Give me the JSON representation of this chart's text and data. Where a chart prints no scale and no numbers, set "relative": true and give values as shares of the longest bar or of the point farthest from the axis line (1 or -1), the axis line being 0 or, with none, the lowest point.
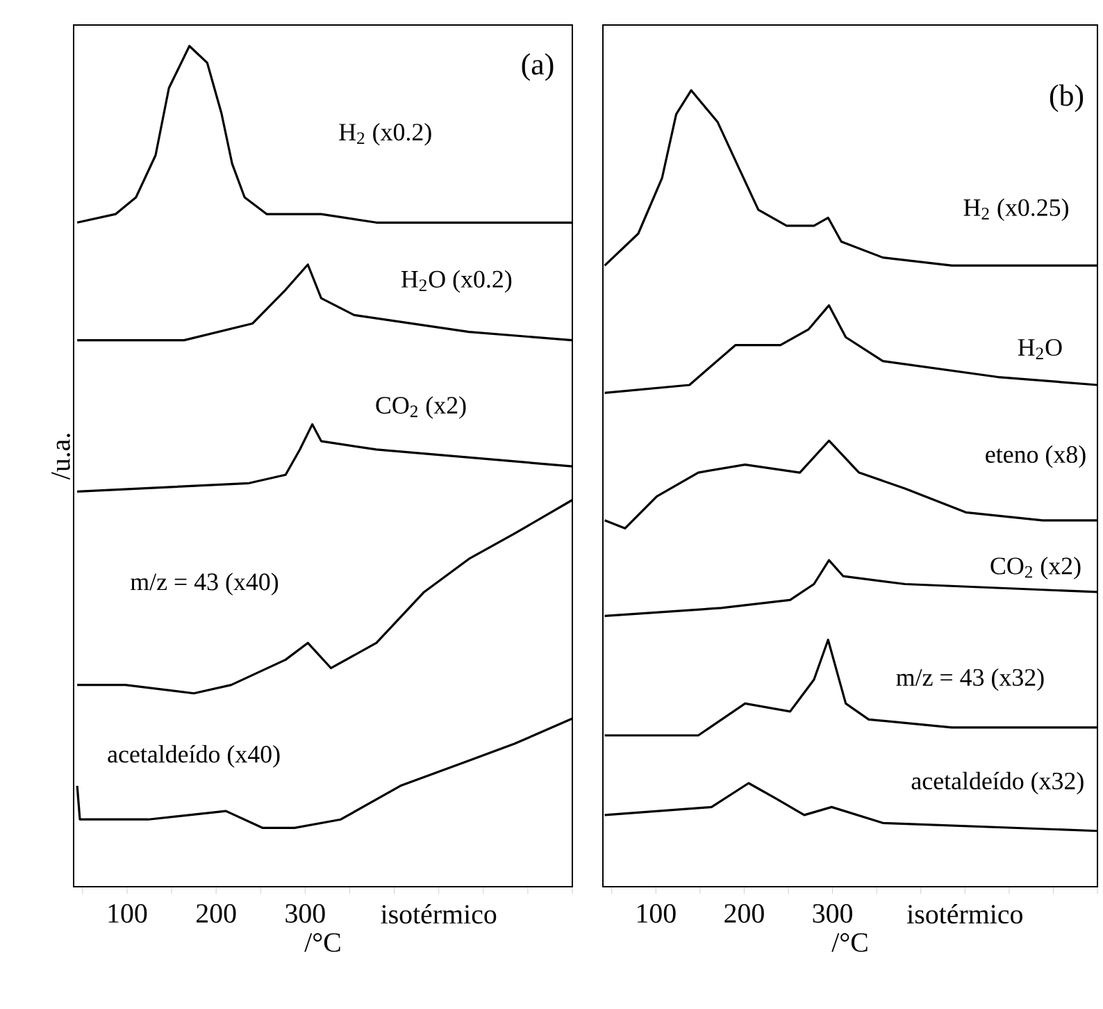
{
  "chart_data": [
    {
      "type": "line",
      "relative": true,
      "xlabel": "/°C",
      "ylabel": "/u.a.",
      "xlim": [
        40,
        600
      ],
      "xticks": [
        {
          "value": 50,
          "label": null
        },
        100,
        {
          "value": 150,
          "label": null
        },
        200,
        {
          "value": 250,
          "label": null
        },
        300,
        {
          "value": 350,
          "label": null
        },
        {
          "value": 400,
          "label": null
        },
        {
          "value": 450,
          "label": "isotérmico"
        },
        {
          "value": 500,
          "label": null
        },
        {
          "value": 550,
          "label": null
        },
        {
          "value": 600,
          "label": null
        }
      ],
      "annotations": [
        "(a)"
      ],
      "series": [
        {
          "name": "H$_{2}$ (x0.2)",
          "color": "#000000",
          "x": [
            44,
            87,
            110,
            132,
            147,
            170,
            190,
            206,
            218,
            232,
            257,
            303,
            318,
            380,
            600
          ],
          "values": [
            0.79,
            0.8,
            0.82,
            0.87,
            0.95,
            1.0,
            0.98,
            0.92,
            0.86,
            0.82,
            0.8,
            0.8,
            0.8,
            0.79,
            0.79
          ]
        },
        {
          "name": "H$_{2}$O (x0.2)",
          "color": "#000000",
          "x": [
            44,
            164,
            241,
            278,
            303,
            318,
            355,
            484,
            600
          ],
          "values": [
            0.65,
            0.65,
            0.67,
            0.71,
            0.74,
            0.7,
            0.68,
            0.66,
            0.65
          ]
        },
        {
          "name": "CO$_{2}$ (x2)",
          "color": "#000000",
          "x": [
            44,
            237,
            278,
            294,
            308,
            318,
            380,
            600
          ],
          "values": [
            0.47,
            0.48,
            0.49,
            0.52,
            0.55,
            0.53,
            0.52,
            0.5
          ]
        },
        {
          "name": "m/z = 43 (x40)",
          "color": "#000000",
          "x": [
            44,
            98,
            175,
            217,
            278,
            303,
            329,
            380,
            433,
            484,
            535,
            600
          ],
          "values": [
            0.24,
            0.24,
            0.23,
            0.24,
            0.27,
            0.29,
            0.26,
            0.29,
            0.35,
            0.39,
            0.42,
            0.46
          ]
        },
        {
          "name": "acetaldeído (x40)",
          "color": "#000000",
          "x": [
            44,
            47,
            124,
            211,
            252,
            288,
            340,
            407,
            484,
            535,
            600
          ],
          "values": [
            0.12,
            0.08,
            0.08,
            0.09,
            0.07,
            0.07,
            0.08,
            0.12,
            0.15,
            0.17,
            0.2
          ]
        }
      ]
    },
    {
      "type": "line",
      "relative": true,
      "xlabel": "/°C",
      "xlim": [
        40,
        600
      ],
      "xticks": [
        {
          "value": 50,
          "label": null
        },
        100,
        {
          "value": 150,
          "label": null
        },
        200,
        {
          "value": 250,
          "label": null
        },
        300,
        {
          "value": 350,
          "label": null
        },
        {
          "value": 400,
          "label": null
        },
        {
          "value": 450,
          "label": "isotérmico"
        },
        {
          "value": 500,
          "label": null
        },
        {
          "value": 550,
          "label": null
        },
        {
          "value": 600,
          "label": null
        }
      ],
      "annotations": [
        "(b)"
      ],
      "series": [
        {
          "name": "H$_{2}$ (x0.25)",
          "color": "#000000",
          "x": [
            42,
            80,
            107,
            123,
            140,
            170,
            195,
            216,
            248,
            279,
            295,
            310,
            357,
            435,
            600
          ],
          "values": [
            0.78,
            0.82,
            0.89,
            0.97,
            1.0,
            0.96,
            0.9,
            0.85,
            0.83,
            0.83,
            0.84,
            0.81,
            0.79,
            0.78,
            0.78
          ]
        },
        {
          "name": "H$_{2}$O",
          "color": "#000000",
          "x": [
            42,
            138,
            190,
            241,
            273,
            296,
            315,
            357,
            487,
            600
          ],
          "values": [
            0.62,
            0.63,
            0.68,
            0.68,
            0.7,
            0.73,
            0.69,
            0.66,
            0.64,
            0.63
          ]
        },
        {
          "name": "eteno (x8)",
          "color": "#000000",
          "x": [
            42,
            65,
            101,
            148,
            201,
            263,
            296,
            330,
            382,
            451,
            538,
            600
          ],
          "values": [
            0.46,
            0.45,
            0.49,
            0.52,
            0.53,
            0.52,
            0.56,
            0.52,
            0.5,
            0.47,
            0.46,
            0.46
          ]
        },
        {
          "name": "CO$_{2}$ (x2)",
          "color": "#000000",
          "x": [
            42,
            174,
            252,
            279,
            296,
            312,
            382,
            600
          ],
          "values": [
            0.34,
            0.35,
            0.36,
            0.38,
            0.41,
            0.39,
            0.38,
            0.37
          ]
        },
        {
          "name": "m/z = 43 (x32)",
          "color": "#000000",
          "x": [
            42,
            148,
            201,
            252,
            279,
            295,
            315,
            341,
            435,
            600
          ],
          "values": [
            0.19,
            0.19,
            0.23,
            0.22,
            0.26,
            0.31,
            0.23,
            0.21,
            0.2,
            0.2
          ]
        },
        {
          "name": "acetaldeído (x32)",
          "color": "#000000",
          "x": [
            42,
            163,
            205,
            237,
            268,
            299,
            357,
            600
          ],
          "values": [
            0.09,
            0.1,
            0.13,
            0.11,
            0.09,
            0.1,
            0.08,
            0.07
          ]
        }
      ]
    }
  ]
}
